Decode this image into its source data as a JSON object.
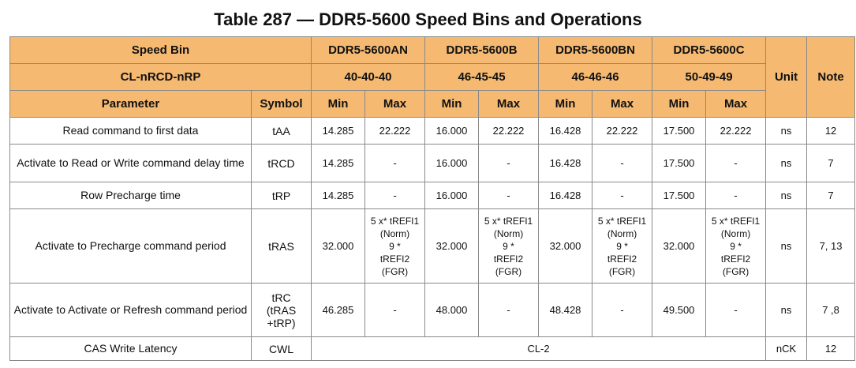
{
  "title": "Table 287 — DDR5-5600 Speed Bins and Operations",
  "header": {
    "speed_bin": "Speed Bin",
    "cl_label": "CL-nRCD-nRP",
    "parameter": "Parameter",
    "symbol": "Symbol",
    "unit": "Unit",
    "note": "Note",
    "min": "Min",
    "max": "Max",
    "bins": [
      {
        "name": "DDR5-5600AN",
        "timing": "40-40-40"
      },
      {
        "name": "DDR5-5600B",
        "timing": "46-45-45"
      },
      {
        "name": "DDR5-5600BN",
        "timing": "46-46-46"
      },
      {
        "name": "DDR5-5600C",
        "timing": "50-49-49"
      }
    ]
  },
  "tras_max_text": "5 x* tREFI1\n(Norm)\n9 *\ntREFI2\n(FGR)",
  "rows": [
    {
      "parameter": "Read command to first data",
      "symbol": "tAA",
      "values": [
        "14.285",
        "22.222",
        "16.000",
        "22.222",
        "16.428",
        "22.222",
        "17.500",
        "22.222"
      ],
      "unit": "ns",
      "note": "12"
    },
    {
      "parameter": "Activate to Read or Write command delay time",
      "symbol": "tRCD",
      "values": [
        "14.285",
        "-",
        "16.000",
        "-",
        "16.428",
        "-",
        "17.500",
        "-"
      ],
      "unit": "ns",
      "note": "7"
    },
    {
      "parameter": "Row Precharge time",
      "symbol": "tRP",
      "values": [
        "14.285",
        "-",
        "16.000",
        "-",
        "16.428",
        "-",
        "17.500",
        "-"
      ],
      "unit": "ns",
      "note": "7"
    },
    {
      "parameter": "Activate to Precharge command period",
      "symbol": "tRAS",
      "values": [
        "32.000",
        "5 x* tREFI1\n(Norm)\n9 *\ntREFI2\n(FGR)",
        "32.000",
        "5 x* tREFI1\n(Norm)\n9 *\ntREFI2\n(FGR)",
        "32.000",
        "5 x* tREFI1\n(Norm)\n9 *\ntREFI2\n(FGR)",
        "32.000",
        "5 x* tREFI1\n(Norm)\n9 *\ntREFI2\n(FGR)"
      ],
      "unit": "ns",
      "note": "7, 13"
    },
    {
      "parameter": "Activate to Activate or Refresh command period",
      "symbol": "tRC\n(tRAS\n+tRP)",
      "values": [
        "46.285",
        "-",
        "48.000",
        "-",
        "48.428",
        "-",
        "49.500",
        "-"
      ],
      "unit": "ns",
      "note": "7 ,8"
    }
  ],
  "cwl_row": {
    "parameter": "CAS Write Latency",
    "symbol": "CWL",
    "value": "CL-2",
    "unit": "nCK",
    "note": "12"
  }
}
